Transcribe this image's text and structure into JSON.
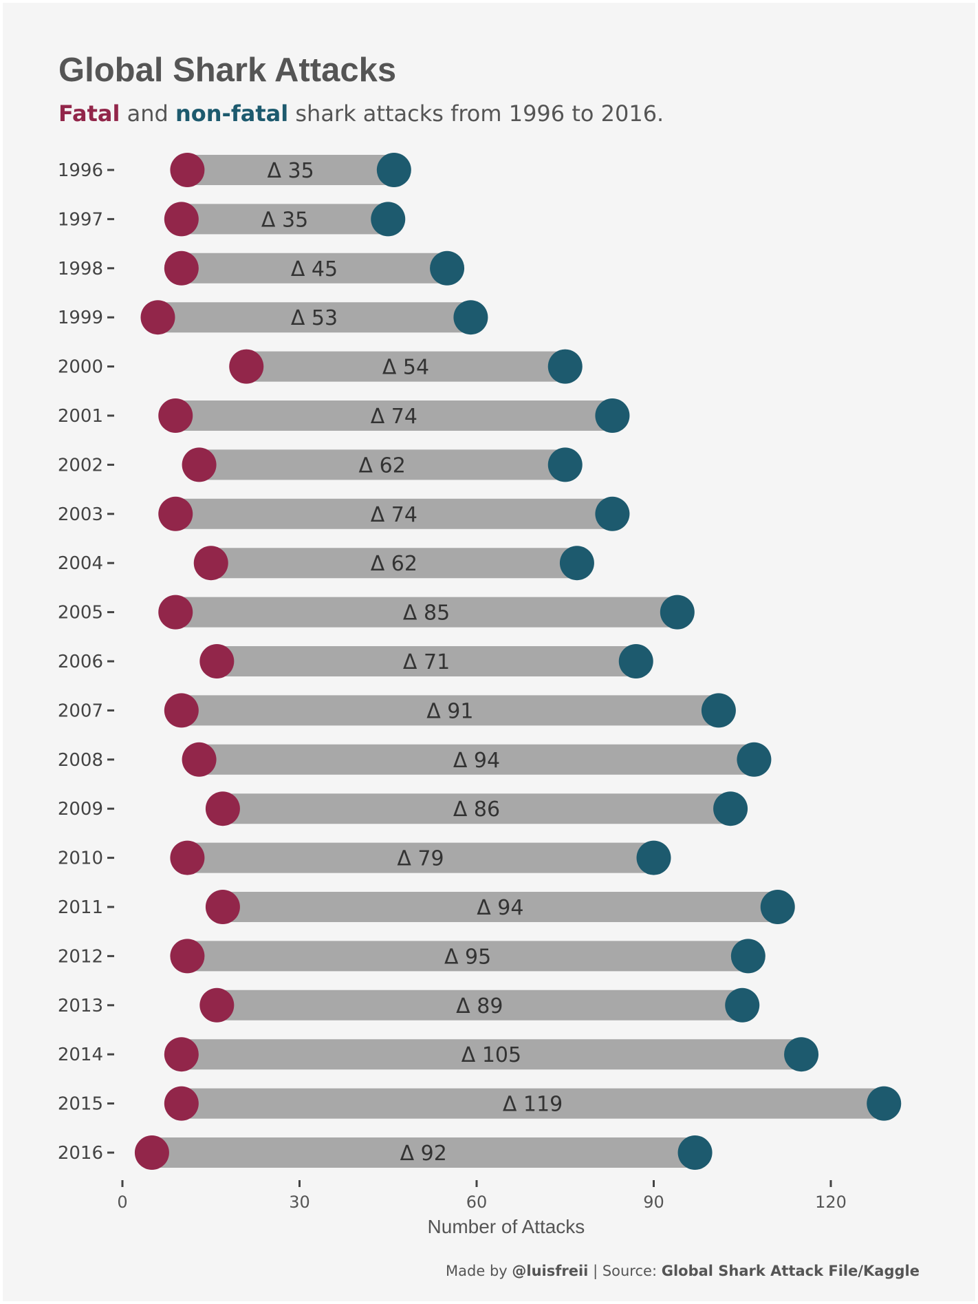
{
  "title": "Global Shark Attacks",
  "subtitle": {
    "fatal_word": "Fatal",
    "and_word": " and ",
    "nonfatal_word": "non-fatal",
    "rest": " shark attacks from 1996 to 2016."
  },
  "caption": {
    "prefix": "Made by ",
    "author": "@luisfreii",
    "middle": " | Source: ",
    "source": "Global Shark Attack File/Kaggle"
  },
  "colors": {
    "fatal": "#92264a",
    "nonfatal": "#1d5a6e",
    "bar": "#a8a8a8",
    "background": "#f5f5f5"
  },
  "chart_data": {
    "type": "dumbbell",
    "xlabel": "Number of Attacks",
    "xlim": [
      0,
      130
    ],
    "xticks": [
      0,
      30,
      60,
      90,
      120
    ],
    "grid": false,
    "rows": [
      {
        "year": "1996",
        "fatal": 11,
        "nonfatal": 46,
        "label": "Δ 35"
      },
      {
        "year": "1997",
        "fatal": 10,
        "nonfatal": 45,
        "label": "Δ 35"
      },
      {
        "year": "1998",
        "fatal": 10,
        "nonfatal": 55,
        "label": "Δ 45"
      },
      {
        "year": "1999",
        "fatal": 6,
        "nonfatal": 59,
        "label": "Δ 53"
      },
      {
        "year": "2000",
        "fatal": 21,
        "nonfatal": 75,
        "label": "Δ 54"
      },
      {
        "year": "2001",
        "fatal": 9,
        "nonfatal": 83,
        "label": "Δ 74"
      },
      {
        "year": "2002",
        "fatal": 13,
        "nonfatal": 75,
        "label": "Δ 62"
      },
      {
        "year": "2003",
        "fatal": 9,
        "nonfatal": 83,
        "label": "Δ 74"
      },
      {
        "year": "2004",
        "fatal": 15,
        "nonfatal": 77,
        "label": "Δ 62"
      },
      {
        "year": "2005",
        "fatal": 9,
        "nonfatal": 94,
        "label": "Δ 85"
      },
      {
        "year": "2006",
        "fatal": 16,
        "nonfatal": 87,
        "label": "Δ 71"
      },
      {
        "year": "2007",
        "fatal": 10,
        "nonfatal": 101,
        "label": "Δ 91"
      },
      {
        "year": "2008",
        "fatal": 13,
        "nonfatal": 107,
        "label": "Δ 94"
      },
      {
        "year": "2009",
        "fatal": 17,
        "nonfatal": 103,
        "label": "Δ 86"
      },
      {
        "year": "2010",
        "fatal": 11,
        "nonfatal": 90,
        "label": "Δ 79"
      },
      {
        "year": "2011",
        "fatal": 17,
        "nonfatal": 111,
        "label": "Δ 94"
      },
      {
        "year": "2012",
        "fatal": 11,
        "nonfatal": 106,
        "label": "Δ 95"
      },
      {
        "year": "2013",
        "fatal": 16,
        "nonfatal": 105,
        "label": "Δ 89"
      },
      {
        "year": "2014",
        "fatal": 10,
        "nonfatal": 115,
        "label": "Δ 105"
      },
      {
        "year": "2015",
        "fatal": 10,
        "nonfatal": 129,
        "label": "Δ 119"
      },
      {
        "year": "2016",
        "fatal": 5,
        "nonfatal": 97,
        "label": "Δ 92"
      }
    ]
  }
}
